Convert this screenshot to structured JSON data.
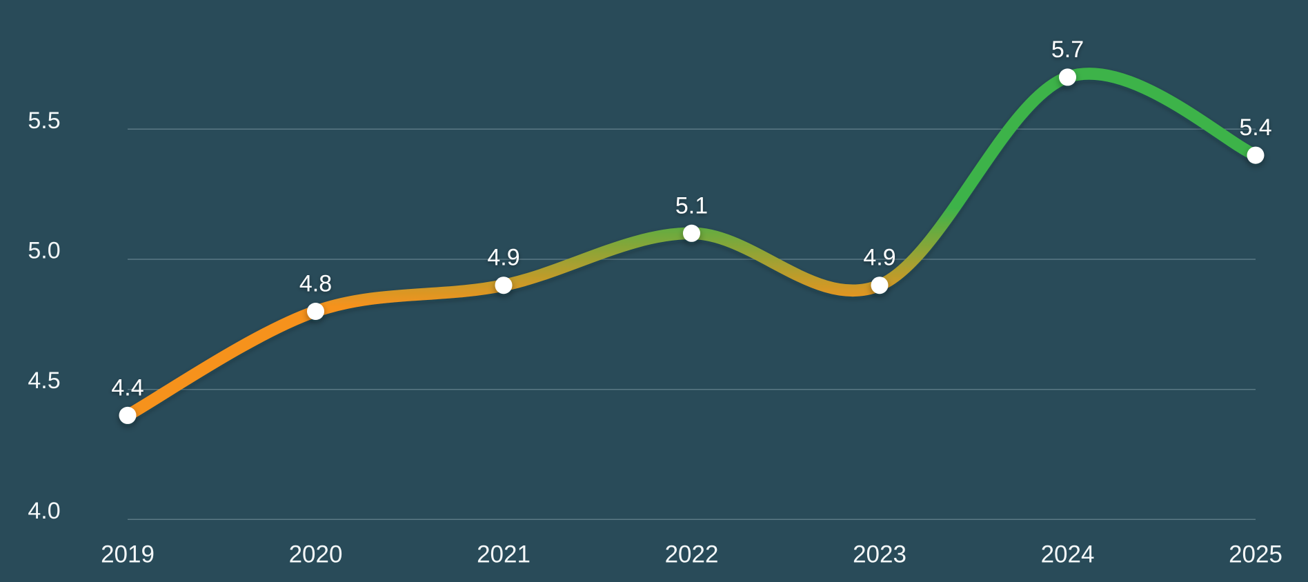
{
  "chart_data": {
    "type": "line",
    "categories": [
      "2019",
      "2020",
      "2021",
      "2022",
      "2023",
      "2024",
      "2025"
    ],
    "values": [
      4.4,
      4.8,
      4.9,
      5.1,
      4.9,
      5.7,
      5.4
    ],
    "point_labels": [
      "4.4",
      "4.8",
      "4.9",
      "5.1",
      "4.9",
      "5.7",
      "5.4"
    ],
    "y_ticks": [
      {
        "label": "4.0",
        "value": 4.0
      },
      {
        "label": "4.5",
        "value": 4.5
      },
      {
        "label": "5.0",
        "value": 5.0
      },
      {
        "label": "5.5",
        "value": 5.5
      }
    ],
    "ylim": [
      4.0,
      5.8
    ],
    "grid": true,
    "legend": "none",
    "smooth": true,
    "colors": {
      "background": "#294B59",
      "line_high": "#3CB34A",
      "line_low": "#F6921E",
      "point_fill": "#FFFFFF",
      "gridline": "#C8DCE4",
      "axis_text": "#F4F8F9",
      "point_label_text": "#FFFFFF"
    }
  }
}
